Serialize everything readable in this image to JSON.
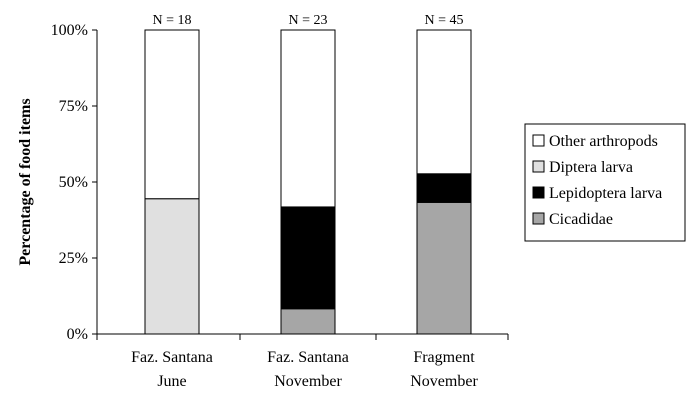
{
  "chart_data": {
    "type": "bar",
    "stacked": true,
    "normalized": true,
    "ylabel": "Percentage of food items",
    "ylim": [
      0,
      100
    ],
    "yticks": [
      "0%",
      "25%",
      "50%",
      "75%",
      "100%"
    ],
    "yticks_values": [
      0,
      25,
      50,
      75,
      100
    ],
    "categories": [
      {
        "line1": "Faz. Santana",
        "line2": "June",
        "n_label": "N = 18"
      },
      {
        "line1": "Faz. Santana",
        "line2": "November",
        "n_label": "N = 23"
      },
      {
        "line1": "Fragment",
        "line2": "November",
        "n_label": "N = 45"
      }
    ],
    "series": [
      {
        "name": "Cicadidae",
        "color": "#a6a6a6",
        "values": [
          0,
          8.3,
          43.3
        ]
      },
      {
        "name": "Lepidoptera larva",
        "color": "#000000",
        "values": [
          0,
          33.5,
          9.4
        ]
      },
      {
        "name": "Diptera larva",
        "color": "#e0e0e0",
        "values": [
          44.5,
          0,
          0
        ]
      },
      {
        "name": "Other arthropods",
        "color": "#ffffff",
        "values": [
          55.5,
          58.2,
          47.3
        ]
      }
    ],
    "legend_order": [
      "Other arthropods",
      "Diptera larva",
      "Lepidoptera larva",
      "Cicadidae"
    ],
    "legend_position": "right",
    "grid": false
  }
}
